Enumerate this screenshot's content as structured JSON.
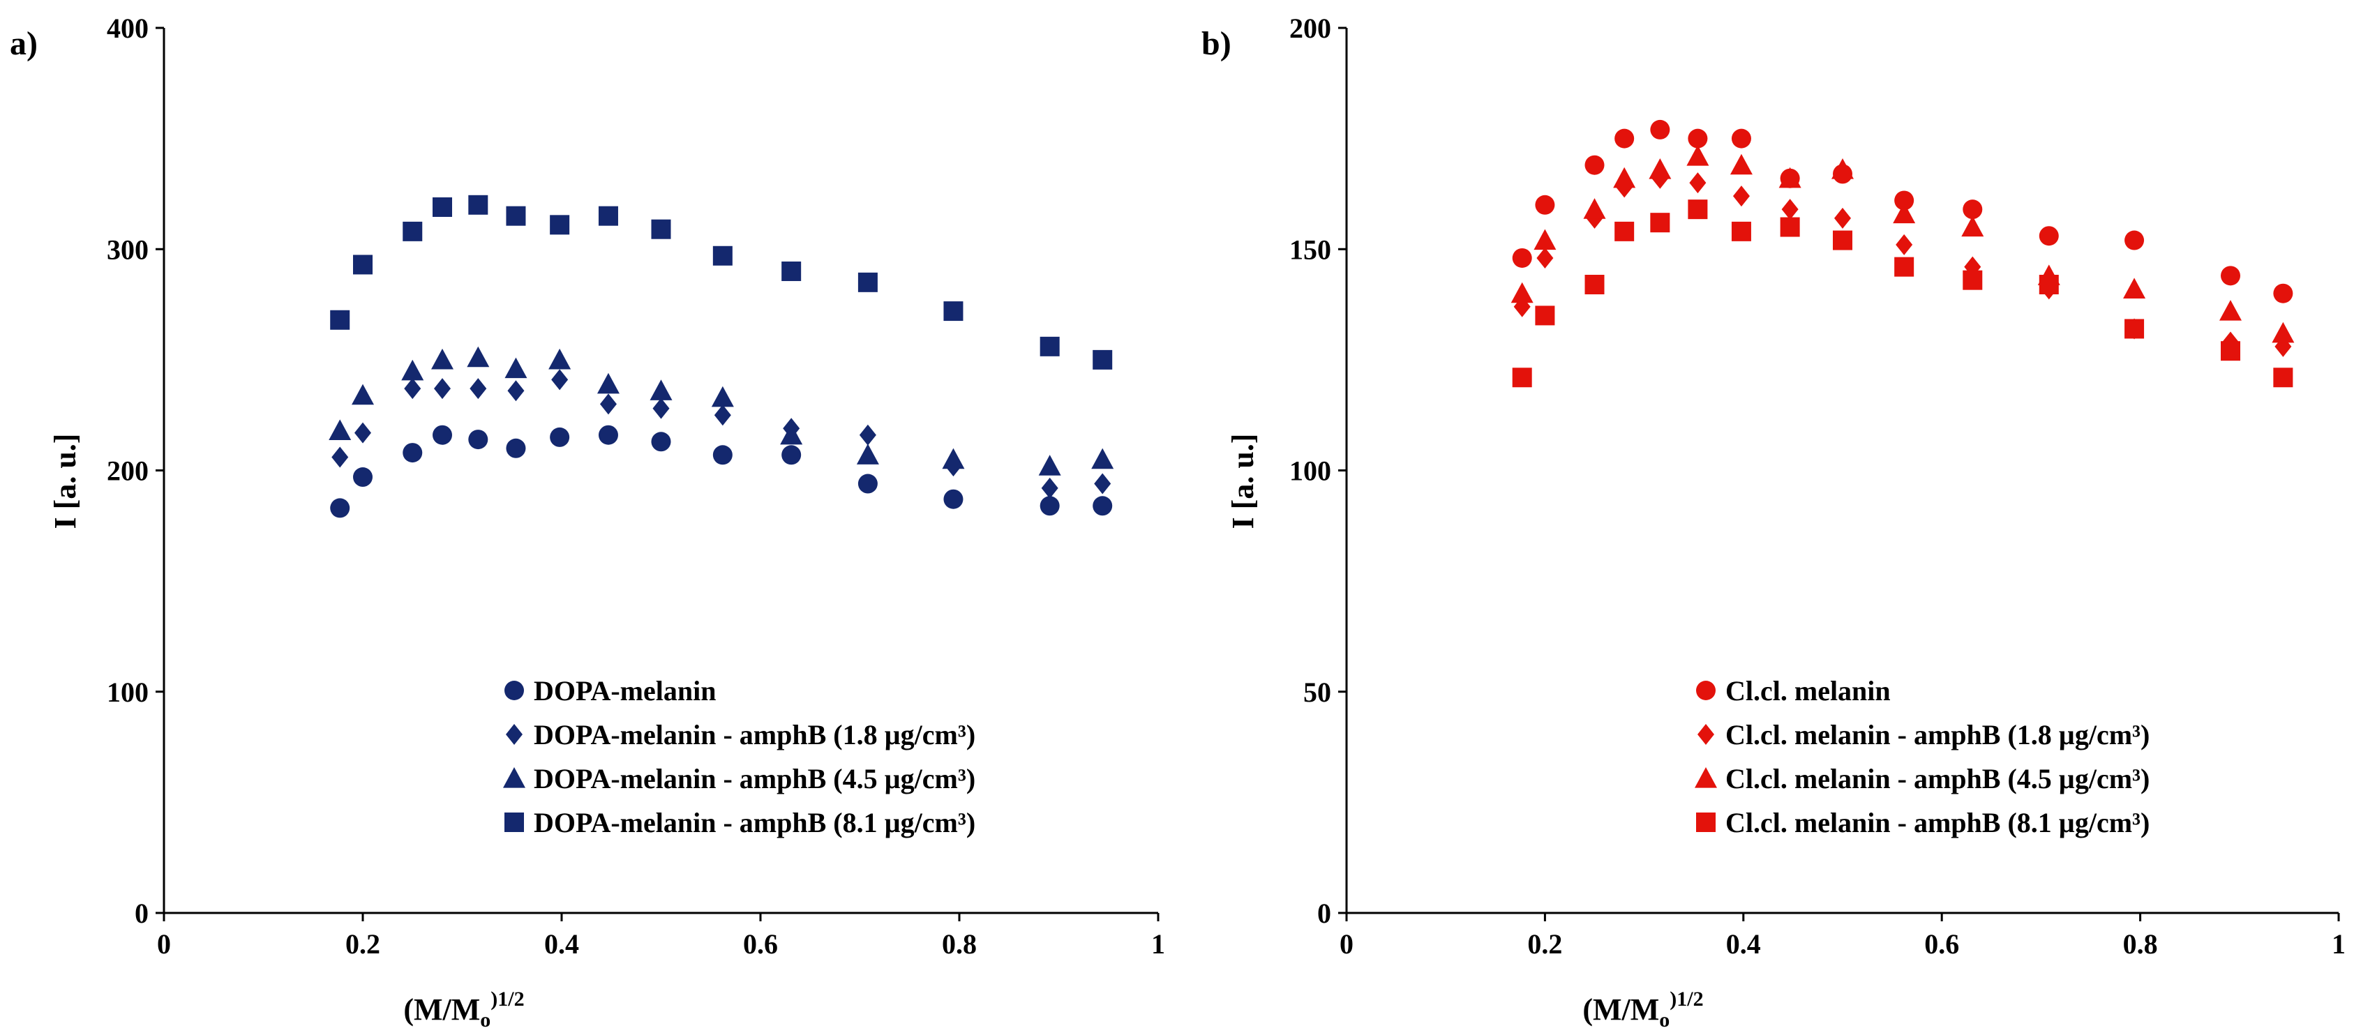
{
  "chart_data": [
    {
      "panel_label": "a)",
      "type": "scatter",
      "xlabel_main": "(M/M",
      "xlabel_sub": "o",
      "xlabel_sup": ")1/2",
      "ylabel": "I [a. u.]",
      "xlim": [
        0,
        1
      ],
      "ylim": [
        0,
        400
      ],
      "xticks": [
        0,
        0.2,
        0.4,
        0.6,
        0.8,
        1
      ],
      "xtick_labels": [
        "0",
        "0.2",
        "0.4",
        "0.6",
        "0.8",
        "1"
      ],
      "yticks": [
        0,
        100,
        200,
        300,
        400
      ],
      "ytick_labels": [
        "0",
        "100",
        "200",
        "300",
        "400"
      ],
      "x": [
        0.177,
        0.2,
        0.25,
        0.28,
        0.316,
        0.354,
        0.398,
        0.447,
        0.5,
        0.562,
        0.631,
        0.708,
        0.794,
        0.891,
        0.944
      ],
      "legend_position": "lower-center",
      "color": "#14286e",
      "series": [
        {
          "name": "DOPA-melanin",
          "marker": "circle",
          "values": [
            183,
            197,
            208,
            216,
            214,
            210,
            215,
            216,
            213,
            207,
            207,
            194,
            187,
            184,
            184
          ]
        },
        {
          "name": "DOPA-melanin - amphB (1.8 µg/cm³)",
          "marker": "diamond",
          "values": [
            206,
            217,
            237,
            237,
            237,
            236,
            241,
            230,
            228,
            225,
            219,
            216,
            202,
            192,
            194
          ]
        },
        {
          "name": "DOPA-melanin - amphB (4.5 µg/cm³)",
          "marker": "triangle",
          "values": [
            218,
            234,
            245,
            250,
            251,
            246,
            250,
            239,
            236,
            233,
            216,
            207,
            205,
            202,
            205
          ]
        },
        {
          "name": "DOPA-melanin - amphB (8.1 µg/cm³)",
          "marker": "square",
          "values": [
            268,
            293,
            308,
            319,
            320,
            315,
            311,
            315,
            309,
            297,
            290,
            285,
            272,
            256,
            250
          ]
        }
      ]
    },
    {
      "panel_label": "b)",
      "type": "scatter",
      "xlabel_main": "(M/M",
      "xlabel_sub": "o",
      "xlabel_sup": ")1/2",
      "ylabel": "I [a. u.]",
      "xlim": [
        0,
        1
      ],
      "ylim": [
        0,
        200
      ],
      "xticks": [
        0,
        0.2,
        0.4,
        0.6,
        0.8,
        1
      ],
      "xtick_labels": [
        "0",
        "0.2",
        "0.4",
        "0.6",
        "0.8",
        "1"
      ],
      "yticks": [
        0,
        50,
        100,
        150,
        200
      ],
      "ytick_labels": [
        "0",
        "50",
        "100",
        "150",
        "200"
      ],
      "x": [
        0.177,
        0.2,
        0.25,
        0.28,
        0.316,
        0.354,
        0.398,
        0.447,
        0.5,
        0.562,
        0.631,
        0.708,
        0.794,
        0.891,
        0.944
      ],
      "legend_position": "lower-center",
      "color": "#e3120b",
      "series": [
        {
          "name": "Cl.cl. melanin",
          "marker": "circle",
          "values": [
            148,
            160,
            169,
            175,
            177,
            175,
            175,
            166,
            167,
            161,
            159,
            153,
            152,
            144,
            140
          ]
        },
        {
          "name": "Cl.cl. melanin - amphB (1.8 µg/cm³)",
          "marker": "diamond",
          "values": [
            137,
            148,
            157,
            164,
            166,
            165,
            162,
            159,
            157,
            151,
            146,
            141,
            132,
            129,
            128
          ]
        },
        {
          "name": "Cl.cl. melanin - amphB (4.5 µg/cm³)",
          "marker": "triangle",
          "values": [
            140,
            152,
            159,
            166,
            168,
            171,
            169,
            166,
            168,
            158,
            155,
            144,
            141,
            136,
            131
          ]
        },
        {
          "name": "Cl.cl. melanin - amphB (8.1 µg/cm³)",
          "marker": "square",
          "values": [
            121,
            135,
            142,
            154,
            156,
            159,
            154,
            155,
            152,
            146,
            143,
            142,
            132,
            127,
            121
          ]
        }
      ]
    }
  ]
}
